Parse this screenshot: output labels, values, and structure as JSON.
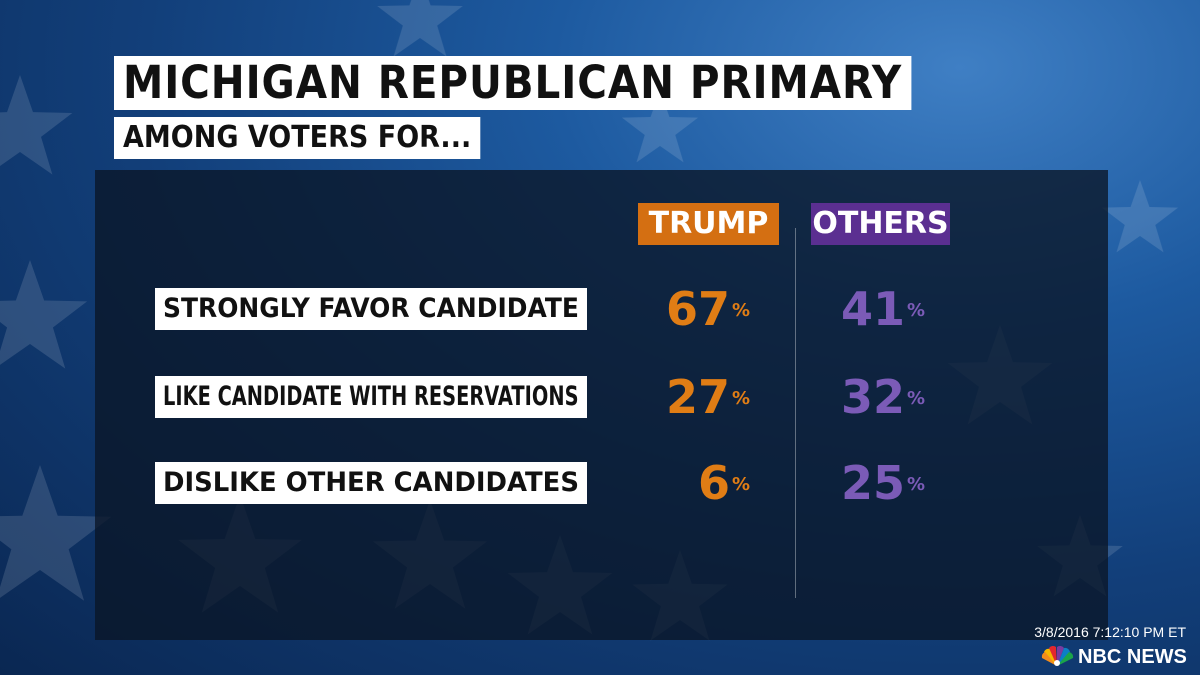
{
  "title": "MICHIGAN REPUBLICAN PRIMARY",
  "subtitle": "AMONG VOTERS FOR...",
  "colors": {
    "trump": "#d46f12",
    "others": "#5b2f91"
  },
  "chart_data": {
    "type": "table",
    "title": "MICHIGAN REPUBLICAN PRIMARY",
    "subtitle": "AMONG VOTERS FOR...",
    "columns": [
      "TRUMP",
      "OTHERS"
    ],
    "rows": [
      {
        "label": "STRONGLY FAVOR CANDIDATE",
        "values": [
          67,
          41
        ],
        "display": [
          "67",
          "41"
        ]
      },
      {
        "label": "LIKE CANDIDATE WITH RESERVATIONS",
        "values": [
          27,
          32
        ],
        "display": [
          "27",
          "32"
        ]
      },
      {
        "label": "DISLIKE OTHER CANDIDATES",
        "values": [
          6,
          25
        ],
        "display": [
          "6",
          "25"
        ]
      }
    ],
    "unit": "%"
  },
  "timestamp": "3/8/2016 7:12:10 PM ET",
  "brand": {
    "name": "NBC NEWS",
    "logo_icon": "nbc-peacock-icon"
  }
}
